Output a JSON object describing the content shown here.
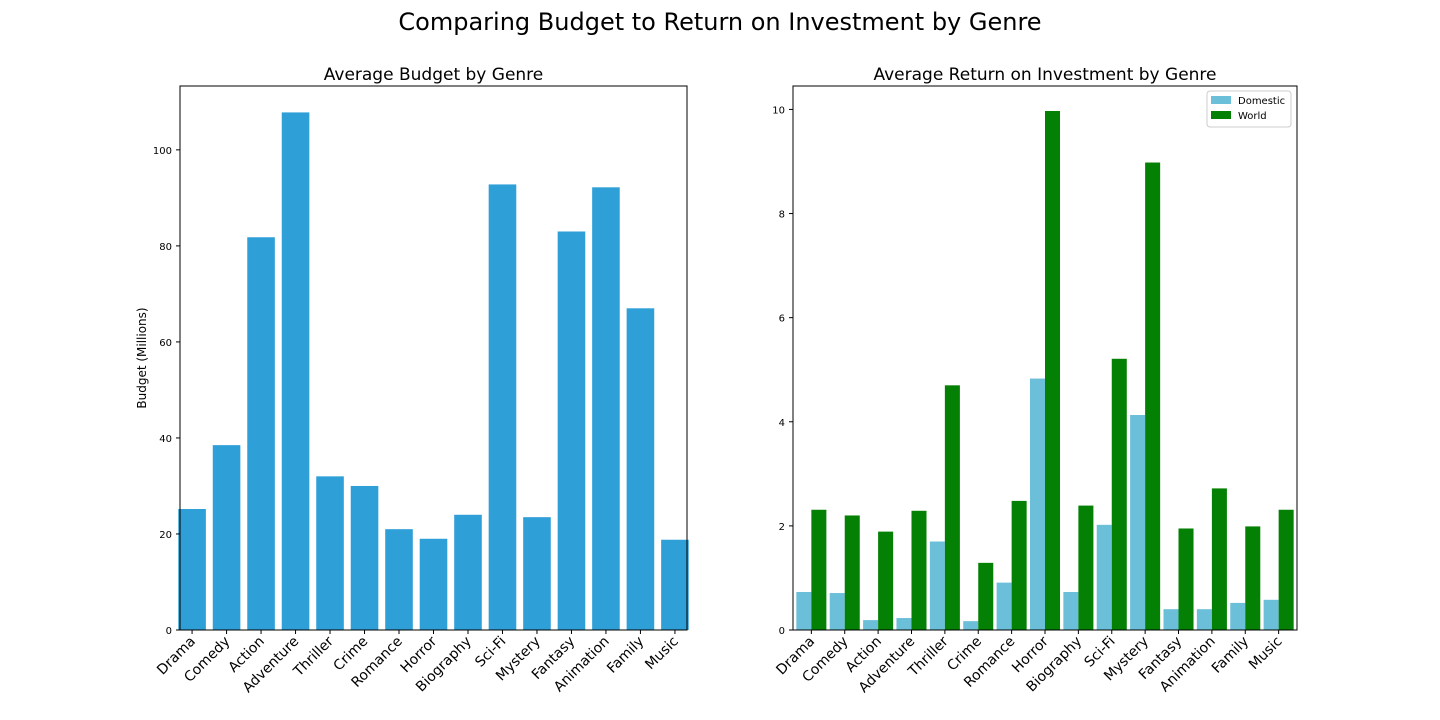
{
  "figure": {
    "title": "Comparing Budget to Return on Investment by Genre"
  },
  "colors": {
    "budget": "#2f9fd8",
    "domestic": "#6cbfd9",
    "world": "#048004"
  },
  "chart_data": [
    {
      "type": "bar",
      "title": "Average Budget by Genre",
      "xlabel": "",
      "ylabel": "Budget (Millions)",
      "ylim": [
        0,
        113.3
      ],
      "yticks": [
        0,
        20,
        40,
        60,
        80,
        100
      ],
      "categories": [
        "Drama",
        "Comedy",
        "Action",
        "Adventure",
        "Thriller",
        "Crime",
        "Romance",
        "Horror",
        "Biography",
        "Sci-Fi",
        "Mystery",
        "Fantasy",
        "Animation",
        "Family",
        "Music"
      ],
      "values": [
        25.2,
        38.5,
        81.8,
        107.8,
        32.0,
        30.0,
        21.0,
        19.0,
        24.0,
        92.8,
        23.5,
        83.0,
        92.2,
        67.0,
        18.8
      ],
      "grid": false,
      "legend": null
    },
    {
      "type": "bar",
      "title": "Average Return on Investment by Genre",
      "xlabel": "",
      "ylabel": "",
      "ylim": [
        0,
        10.45
      ],
      "yticks": [
        0,
        2,
        4,
        6,
        8,
        10
      ],
      "categories": [
        "Drama",
        "Comedy",
        "Action",
        "Adventure",
        "Thriller",
        "Crime",
        "Romance",
        "Horror",
        "Biography",
        "Sci-Fi",
        "Mystery",
        "Fantasy",
        "Animation",
        "Family",
        "Music"
      ],
      "series": [
        {
          "name": "Domestic",
          "values": [
            0.73,
            0.71,
            0.19,
            0.23,
            1.7,
            0.17,
            0.91,
            4.83,
            0.73,
            2.02,
            4.13,
            0.4,
            0.4,
            0.52,
            0.58
          ]
        },
        {
          "name": "World",
          "values": [
            2.31,
            2.2,
            1.89,
            2.29,
            4.7,
            1.29,
            2.48,
            9.97,
            2.39,
            5.21,
            8.98,
            1.95,
            2.72,
            1.99,
            2.31
          ]
        }
      ],
      "grid": false,
      "legend": "top-right"
    }
  ]
}
